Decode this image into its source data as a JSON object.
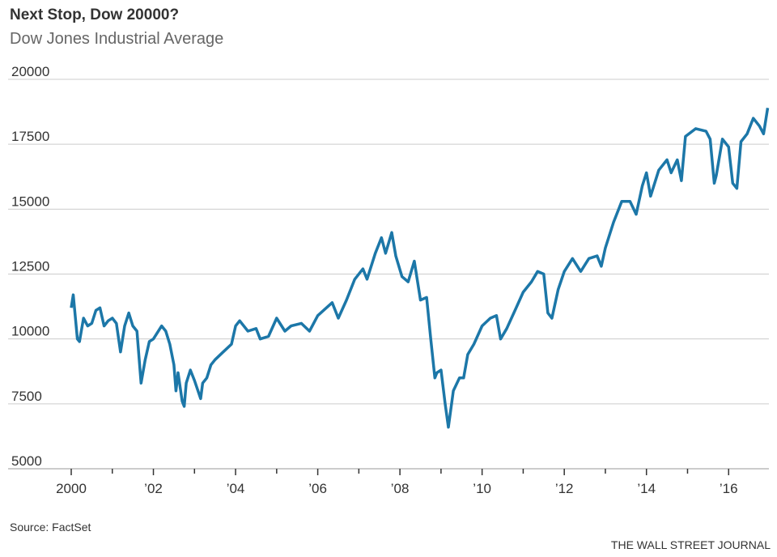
{
  "chart_data": {
    "type": "line",
    "title": "Next Stop, Dow 20000?",
    "subtitle": "Dow Jones Industrial Average",
    "source": "Source: FactSet",
    "credit": "THE WALL STREET JOURNAL",
    "color": "#1c77a8",
    "x": [
      2000.0,
      2000.05,
      2000.15,
      2000.2,
      2000.3,
      2000.4,
      2000.5,
      2000.6,
      2000.7,
      2000.8,
      2000.9,
      2001.0,
      2001.1,
      2001.2,
      2001.3,
      2001.4,
      2001.5,
      2001.6,
      2001.7,
      2001.8,
      2001.9,
      2002.0,
      2002.2,
      2002.3,
      2002.4,
      2002.5,
      2002.55,
      2002.6,
      2002.7,
      2002.75,
      2002.8,
      2002.9,
      2003.0,
      2003.15,
      2003.2,
      2003.3,
      2003.4,
      2003.5,
      2003.7,
      2003.9,
      2004.0,
      2004.1,
      2004.3,
      2004.5,
      2004.6,
      2004.8,
      2005.0,
      2005.2,
      2005.35,
      2005.6,
      2005.8,
      2006.0,
      2006.35,
      2006.5,
      2006.7,
      2006.9,
      2007.1,
      2007.2,
      2007.4,
      2007.55,
      2007.65,
      2007.8,
      2007.9,
      2008.05,
      2008.2,
      2008.35,
      2008.5,
      2008.65,
      2008.75,
      2008.85,
      2008.9,
      2009.0,
      2009.1,
      2009.18,
      2009.3,
      2009.45,
      2009.55,
      2009.65,
      2009.8,
      2010.0,
      2010.2,
      2010.35,
      2010.45,
      2010.6,
      2010.8,
      2011.0,
      2011.2,
      2011.35,
      2011.5,
      2011.6,
      2011.7,
      2011.85,
      2012.0,
      2012.2,
      2012.4,
      2012.6,
      2012.8,
      2012.9,
      2013.0,
      2013.2,
      2013.4,
      2013.6,
      2013.75,
      2013.9,
      2014.0,
      2014.1,
      2014.3,
      2014.5,
      2014.6,
      2014.75,
      2014.85,
      2014.95,
      2015.2,
      2015.45,
      2015.55,
      2015.65,
      2015.7,
      2015.85,
      2016.0,
      2016.1,
      2016.2,
      2016.3,
      2016.45,
      2016.6,
      2016.75,
      2016.85,
      2016.95
    ],
    "values": [
      11200,
      11700,
      10000,
      9900,
      10800,
      10500,
      10600,
      11100,
      11200,
      10500,
      10700,
      10800,
      10600,
      9500,
      10500,
      11000,
      10500,
      10300,
      8300,
      9200,
      9900,
      10000,
      10500,
      10300,
      9800,
      9000,
      8000,
      8700,
      7600,
      7400,
      8300,
      8800,
      8400,
      7700,
      8300,
      8500,
      9000,
      9200,
      9500,
      9800,
      10500,
      10700,
      10300,
      10400,
      10000,
      10100,
      10800,
      10300,
      10500,
      10600,
      10300,
      10900,
      11400,
      10800,
      11500,
      12300,
      12700,
      12300,
      13300,
      13900,
      13300,
      14100,
      13200,
      12400,
      12200,
      13000,
      11500,
      11600,
      10000,
      8500,
      8700,
      8800,
      7500,
      6600,
      8000,
      8500,
      8500,
      9400,
      9800,
      10500,
      10800,
      10900,
      10000,
      10400,
      11100,
      11800,
      12200,
      12600,
      12500,
      11000,
      10800,
      11900,
      12600,
      13100,
      12600,
      13100,
      13200,
      12800,
      13500,
      14500,
      15300,
      15300,
      14800,
      15900,
      16400,
      15500,
      16500,
      16900,
      16400,
      16900,
      16100,
      17800,
      18100,
      18000,
      17700,
      16000,
      16300,
      17700,
      17400,
      16000,
      15800,
      17600,
      17900,
      18500,
      18200,
      17900,
      18900
    ],
    "xlim": [
      2000,
      2017
    ],
    "xticks": [
      {
        "value": 2000,
        "label": "2000"
      },
      {
        "value": 2002,
        "label": "’02"
      },
      {
        "value": 2004,
        "label": "’04"
      },
      {
        "value": 2006,
        "label": "’06"
      },
      {
        "value": 2008,
        "label": "’08"
      },
      {
        "value": 2010,
        "label": "’10"
      },
      {
        "value": 2012,
        "label": "’12"
      },
      {
        "value": 2014,
        "label": "’14"
      },
      {
        "value": 2016,
        "label": "’16"
      }
    ],
    "xminorticks": [
      2001,
      2003,
      2005,
      2007,
      2009,
      2011,
      2013,
      2015
    ],
    "ylim": [
      5000,
      20000
    ],
    "yticks": [
      5000,
      7500,
      10000,
      12500,
      15000,
      17500,
      20000
    ],
    "grid": true
  }
}
